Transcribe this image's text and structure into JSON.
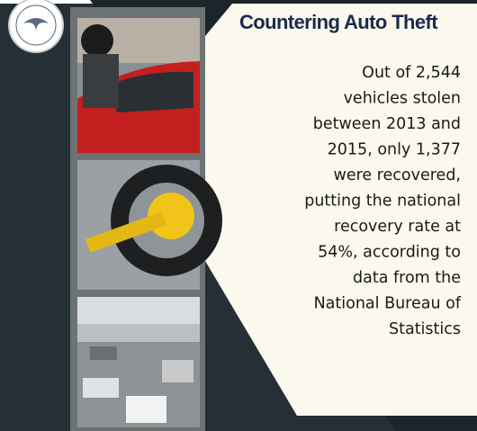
{
  "header": {
    "title": "Countering Auto Theft"
  },
  "body": {
    "lines": [
      "Out of 2,544",
      "vehicles stolen",
      "between 2013 and",
      "2015, only 1,377",
      "were recovered,",
      "putting the national",
      "recovery rate at",
      "54%, according to",
      "data from the",
      "National Bureau of",
      "Statistics"
    ]
  }
}
